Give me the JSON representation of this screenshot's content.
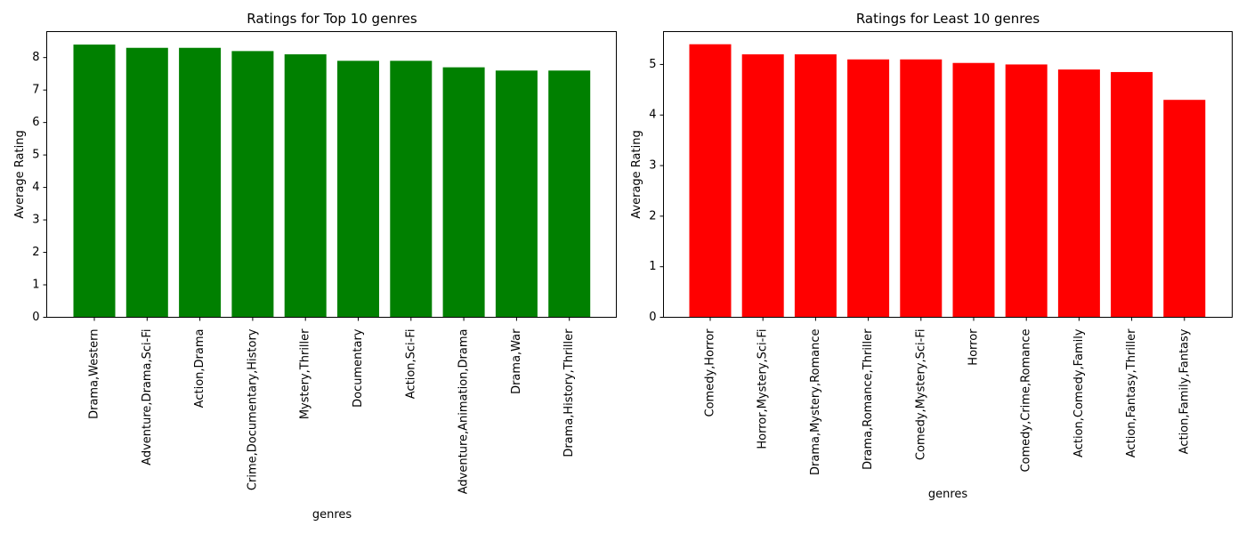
{
  "chart_data": [
    {
      "type": "bar",
      "title": "Ratings for Top 10 genres",
      "xlabel": "genres",
      "ylabel": "Average Rating",
      "color": "#008000",
      "ylim": [
        0,
        8.8
      ],
      "yticks": [
        0,
        1,
        2,
        3,
        4,
        5,
        6,
        7,
        8
      ],
      "categories": [
        "Drama,Western",
        "Adventure,Drama,Sci-Fi",
        "Action,Drama",
        "Crime,Documentary,History",
        "Mystery,Thriller",
        "Documentary",
        "Action,Sci-Fi",
        "Adventure,Animation,Drama",
        "Drama,War",
        "Drama,History,Thriller"
      ],
      "values": [
        8.4,
        8.3,
        8.3,
        8.2,
        8.1,
        7.9,
        7.9,
        7.7,
        7.6,
        7.6
      ],
      "grid": false
    },
    {
      "type": "bar",
      "title": "Ratings for Least 10 genres",
      "xlabel": "genres",
      "ylabel": "Average Rating",
      "color": "#ff0000",
      "ylim": [
        0,
        5.65
      ],
      "yticks": [
        0,
        1,
        2,
        3,
        4,
        5
      ],
      "categories": [
        "Comedy,Horror",
        "Horror,Mystery,Sci-Fi",
        "Drama,Mystery,Romance",
        "Drama,Romance,Thriller",
        "Comedy,Mystery,Sci-Fi",
        "Horror",
        "Comedy,Crime,Romance",
        "Action,Comedy,Family",
        "Action,Fantasy,Thriller",
        "Action,Family,Fantasy"
      ],
      "values": [
        5.4,
        5.2,
        5.2,
        5.1,
        5.1,
        5.03,
        5.0,
        4.9,
        4.85,
        4.3
      ],
      "grid": false
    }
  ]
}
